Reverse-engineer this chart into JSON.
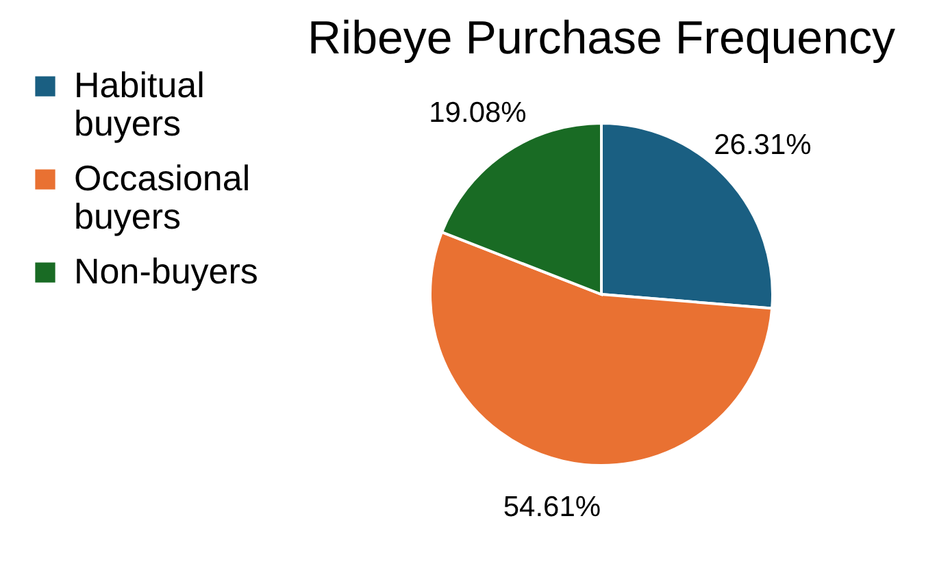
{
  "chart_data": {
    "type": "pie",
    "title": "Ribeye Purchase Frequency",
    "categories": [
      "Habitual buyers",
      "Occasional buyers",
      "Non-buyers"
    ],
    "values": [
      26.31,
      54.61,
      19.08
    ],
    "colors": [
      "#1a5f82",
      "#e97132",
      "#196b24"
    ],
    "value_labels": [
      "26.31%",
      "54.61%",
      "19.08%"
    ],
    "legend": "left"
  }
}
